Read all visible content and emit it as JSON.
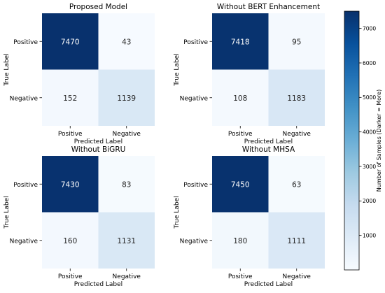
{
  "chart_data": [
    {
      "type": "heatmap",
      "title": "Proposed Model",
      "xlabel": "Predicted Label",
      "ylabel": "True Label",
      "x_categories": [
        "Positive",
        "Negative"
      ],
      "y_categories": [
        "Positive",
        "Negative"
      ],
      "values": [
        [
          7470,
          43
        ],
        [
          152,
          1139
        ]
      ]
    },
    {
      "type": "heatmap",
      "title": "Without BERT Enhancement",
      "xlabel": "Predicted Label",
      "ylabel": "True Label",
      "x_categories": [
        "Positive",
        "Negative"
      ],
      "y_categories": [
        "Positive",
        "Negative"
      ],
      "values": [
        [
          7418,
          95
        ],
        [
          108,
          1183
        ]
      ]
    },
    {
      "type": "heatmap",
      "title": "Without BiGRU",
      "xlabel": "Predicted Label",
      "ylabel": "True Label",
      "x_categories": [
        "Positive",
        "Negative"
      ],
      "y_categories": [
        "Positive",
        "Negative"
      ],
      "values": [
        [
          7430,
          83
        ],
        [
          160,
          1131
        ]
      ]
    },
    {
      "type": "heatmap",
      "title": "Without MHSA",
      "xlabel": "Predicted Label",
      "ylabel": "True Label",
      "x_categories": [
        "Positive",
        "Negative"
      ],
      "y_categories": [
        "Positive",
        "Negative"
      ],
      "values": [
        [
          7450,
          63
        ],
        [
          180,
          1111
        ]
      ]
    }
  ],
  "colorbar": {
    "label": "Number of Samples (Darker = More)",
    "ticks": [
      1000,
      2000,
      3000,
      4000,
      5000,
      6000,
      7000
    ],
    "range": [
      0,
      7500
    ],
    "colormap": "Blues",
    "colors": [
      "#f7fbff",
      "#deebf7",
      "#c6dbef",
      "#9ecae1",
      "#6baed6",
      "#4292c6",
      "#2171b5",
      "#08519c",
      "#08306b"
    ]
  }
}
